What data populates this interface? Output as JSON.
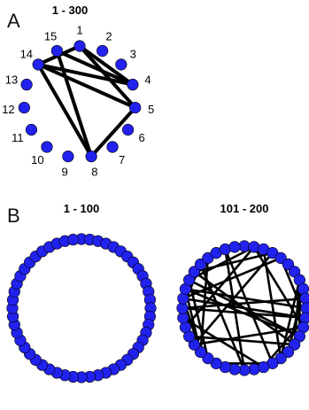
{
  "colors": {
    "node_fill": "#2222ee",
    "node_stroke": "#000000",
    "edge": "#000000",
    "dense_fill": "#050505",
    "speckle": "#ffffff",
    "background": "#ffffff"
  },
  "panel_a": {
    "letter": "A",
    "title": "1 - 300",
    "node_labels": [
      "1",
      "2",
      "3",
      "4",
      "5",
      "6",
      "7",
      "8",
      "9",
      "10",
      "11",
      "12",
      "13",
      "14",
      "15"
    ],
    "edges": [
      {
        "from": "1",
        "to": "14"
      },
      {
        "from": "1",
        "to": "4"
      },
      {
        "from": "14",
        "to": "4"
      },
      {
        "from": "15",
        "to": "4"
      },
      {
        "from": "14",
        "to": "5"
      },
      {
        "from": "14",
        "to": "8"
      },
      {
        "from": "1",
        "to": "5"
      },
      {
        "from": "15",
        "to": "8"
      },
      {
        "from": "5",
        "to": "8"
      }
    ]
  },
  "panel_b": {
    "letter": "B",
    "networks": [
      {
        "title": "1 - 100",
        "node_count": 52,
        "style": "dense"
      },
      {
        "title": "101 - 200",
        "node_count": 40,
        "style": "sparse"
      }
    ]
  }
}
